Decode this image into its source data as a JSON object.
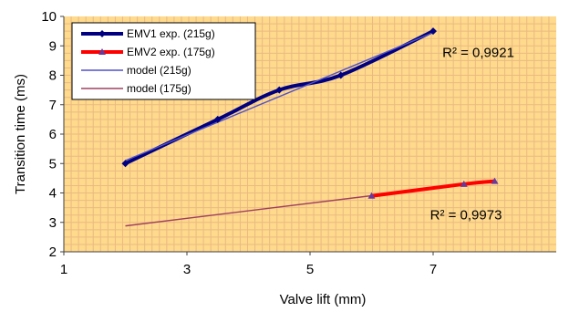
{
  "chart_data": {
    "type": "line",
    "xlabel": "Valve lift (mm)",
    "ylabel": "Transition time  (ms)",
    "xlim": [
      1,
      9
    ],
    "ylim": [
      2,
      10
    ],
    "xticks": [
      "1",
      "3",
      "5",
      "7"
    ],
    "yticks": [
      "2",
      "3",
      "4",
      "5",
      "6",
      "7",
      "8",
      "9",
      "10"
    ],
    "grid": true,
    "legend_position": "top-left",
    "background_color": "#FFD98C",
    "grid_color": "#E9BB82",
    "series": [
      {
        "name": "EMV1 exp. (215g)",
        "color": "#000080",
        "marker": "diamond",
        "x": [
          2,
          3.5,
          4.5,
          5.5,
          7
        ],
        "y": [
          5.0,
          6.5,
          7.5,
          8.0,
          9.5
        ]
      },
      {
        "name": "EMV2 exp. (175g)",
        "color": "#FF0000",
        "marker": "triangle",
        "x": [
          6,
          7.5,
          8
        ],
        "y": [
          3.9,
          4.3,
          4.4
        ]
      },
      {
        "name": "model (215g)",
        "color": "#5050C8",
        "x": [
          2,
          7
        ],
        "y": [
          5.1,
          9.45
        ]
      },
      {
        "name": "model (175g)",
        "color": "#A04060",
        "x": [
          2,
          8
        ],
        "y": [
          2.88,
          4.42
        ]
      }
    ],
    "annotations": [
      {
        "text": "R² = 0,9921",
        "x": 7.15,
        "y": 8.62
      },
      {
        "text": "R² = 0,9973",
        "x": 6.95,
        "y": 3.1
      }
    ]
  }
}
